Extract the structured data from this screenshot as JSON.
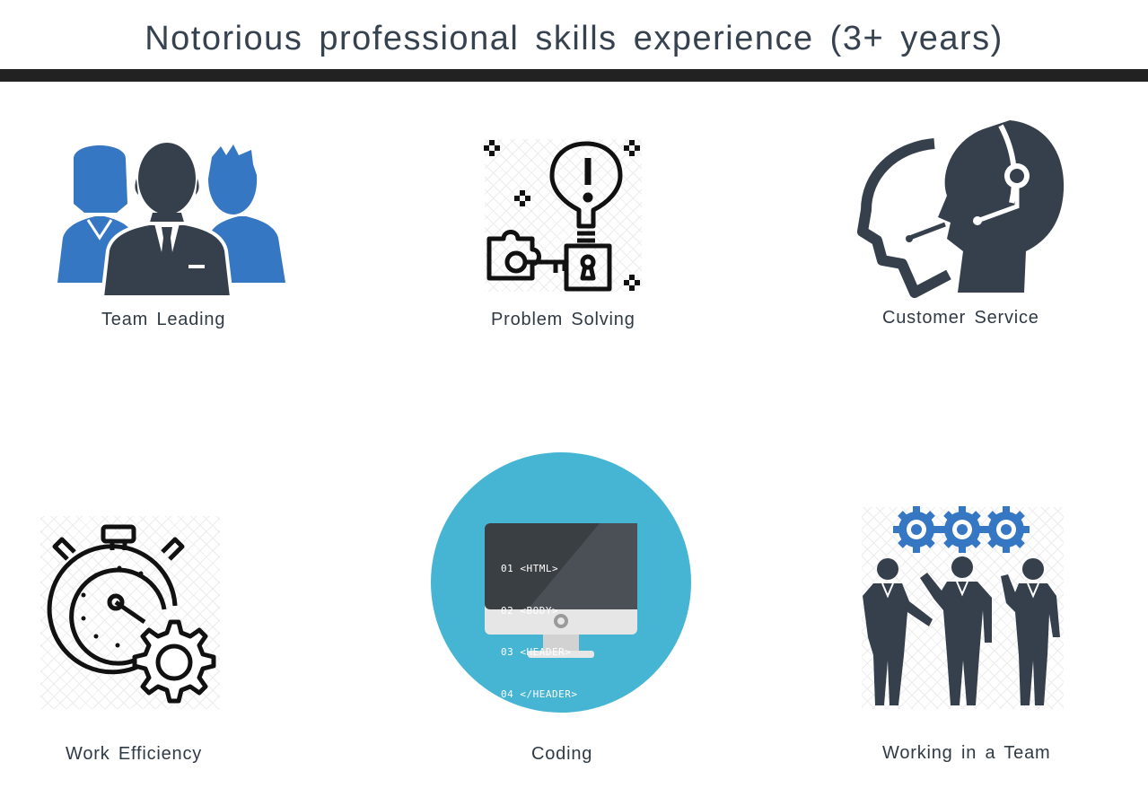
{
  "header": {
    "title": "Notorious professional skills experience (3+ years)"
  },
  "skills": [
    {
      "label": "Team Leading",
      "icon": "team-leader-icon"
    },
    {
      "label": "Problem Solving",
      "icon": "lightbulb-key-icon"
    },
    {
      "label": "Customer Service",
      "icon": "headset-agent-icon"
    },
    {
      "label": "Work Efficiency",
      "icon": "stopwatch-gear-icon"
    },
    {
      "label": "Coding",
      "icon": "monitor-code-icon"
    },
    {
      "label": "Working in a Team",
      "icon": "team-gears-icon"
    }
  ],
  "coding_screen": {
    "lines": [
      "01 <HTML>",
      "02 <BODY>",
      "03 <HEADER>",
      "04 </HEADER>"
    ]
  },
  "colors": {
    "dark": "#36404c",
    "blue": "#3577c2",
    "teal": "#45b5d3",
    "rule": "#222222"
  }
}
